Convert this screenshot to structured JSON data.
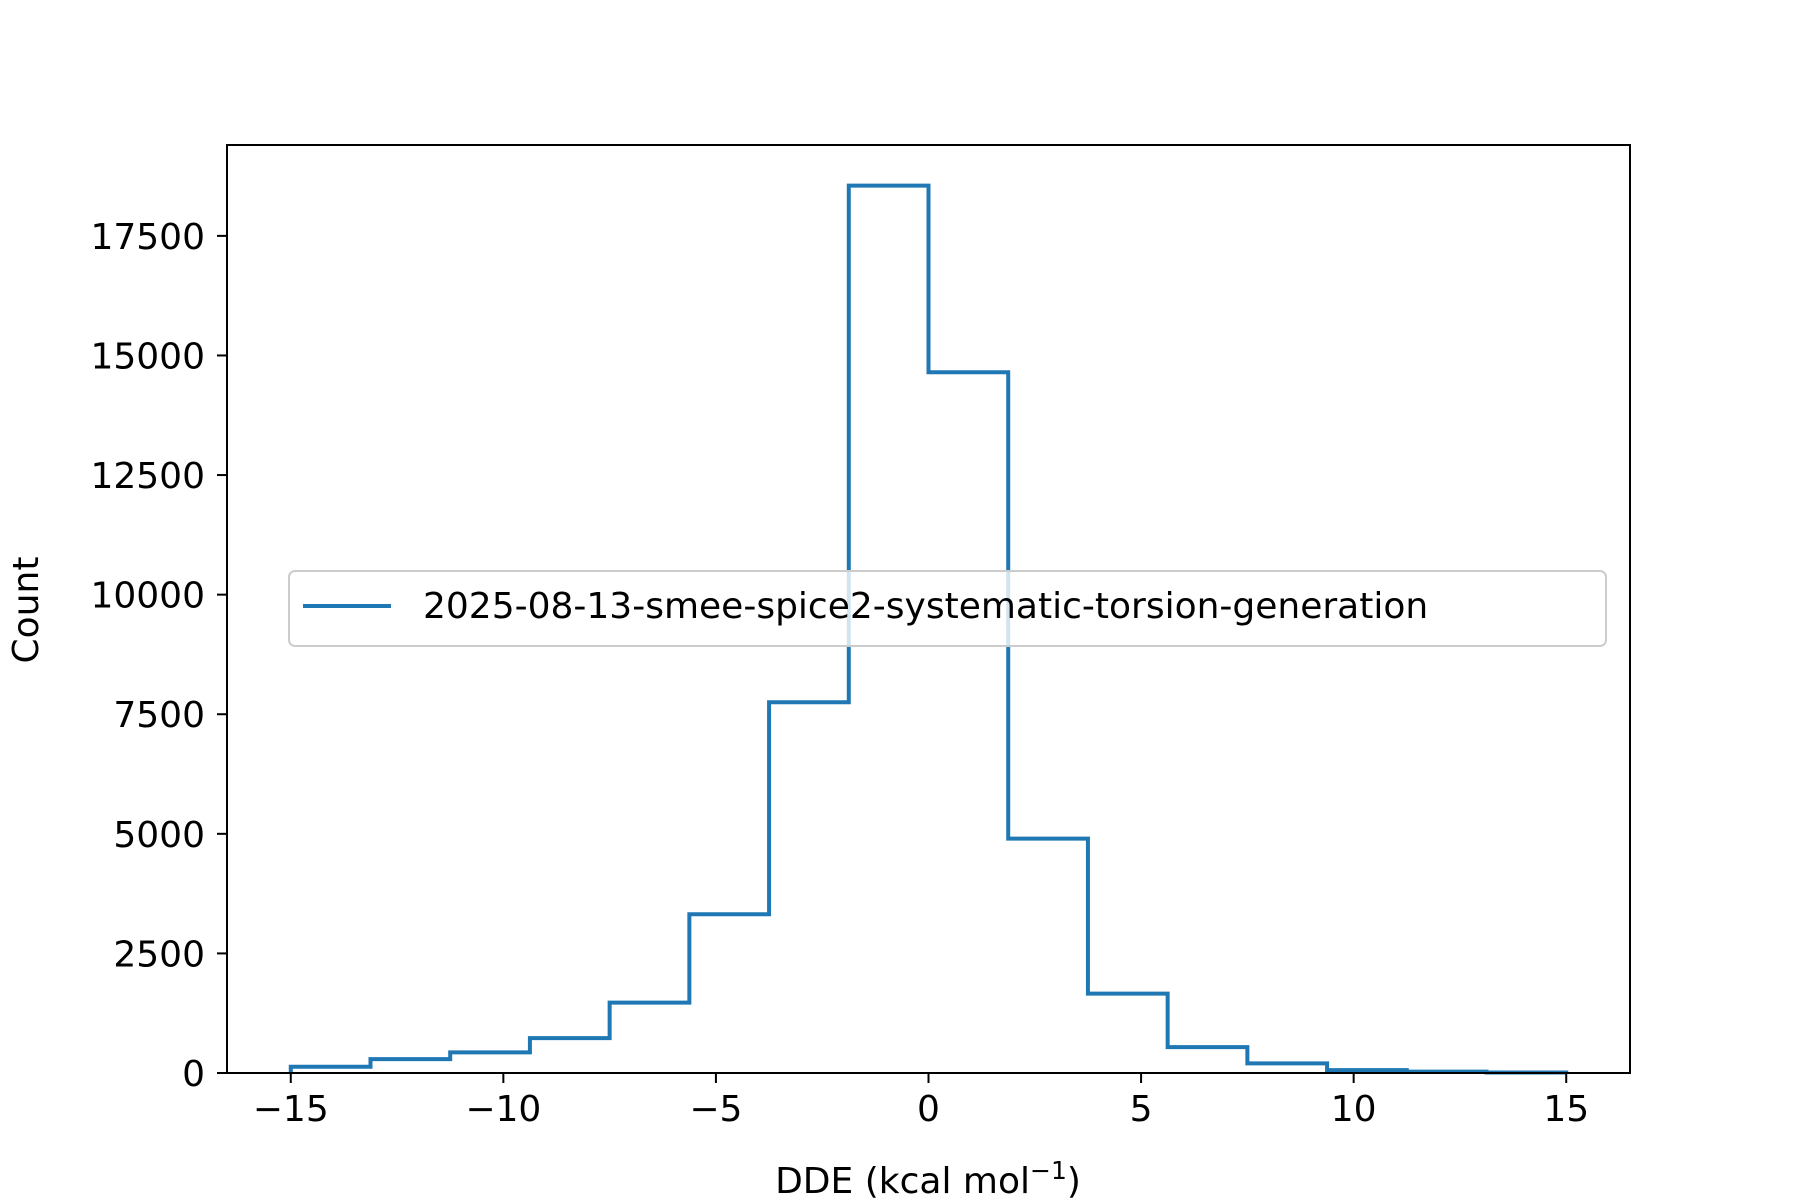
{
  "chart_data": {
    "type": "histogram-step",
    "title": "",
    "xlabel": "DDE (kcal mol",
    "xlabel_sup": "−1",
    "xlabel_close": ")",
    "ylabel": "Count",
    "xlim": [
      -16.5,
      16.5
    ],
    "ylim": [
      0,
      19400
    ],
    "xticks": [
      {
        "value": -15,
        "label": "−15"
      },
      {
        "value": -10,
        "label": "−10"
      },
      {
        "value": -5,
        "label": "−5"
      },
      {
        "value": 0,
        "label": "0"
      },
      {
        "value": 5,
        "label": "5"
      },
      {
        "value": 10,
        "label": "10"
      },
      {
        "value": 15,
        "label": "15"
      }
    ],
    "yticks": [
      {
        "value": 0,
        "label": "0"
      },
      {
        "value": 2500,
        "label": "2500"
      },
      {
        "value": 5000,
        "label": "5000"
      },
      {
        "value": 7500,
        "label": "7500"
      },
      {
        "value": 10000,
        "label": "10000"
      },
      {
        "value": 12500,
        "label": "12500"
      },
      {
        "value": 15000,
        "label": "15000"
      },
      {
        "value": 17500,
        "label": "17500"
      }
    ],
    "legend_position": "center",
    "series": [
      {
        "name": "2025-08-13-smee-spice2-systematic-torsion-generation",
        "color": "#1f77b4",
        "bin_edges": [
          -15,
          -13.125,
          -11.25,
          -9.375,
          -7.5,
          -5.625,
          -3.75,
          -1.875,
          0,
          1.875,
          3.75,
          5.625,
          7.5,
          9.375,
          11.25,
          13.125,
          15
        ],
        "counts": [
          130,
          290,
          430,
          730,
          1470,
          3320,
          7750,
          18550,
          14650,
          4900,
          1660,
          540,
          200,
          60,
          30,
          10
        ]
      }
    ]
  }
}
